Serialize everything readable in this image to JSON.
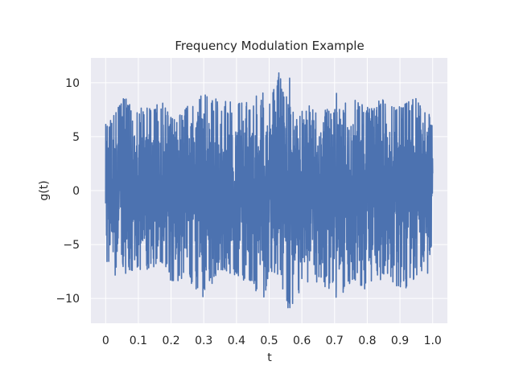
{
  "chart_data": {
    "type": "line",
    "title": "Frequency Modulation Example",
    "xlabel": "t",
    "ylabel": "g(t)",
    "xlim": [
      -0.045,
      1.045
    ],
    "ylim": [
      -12.3,
      12.3
    ],
    "xticks": [
      0,
      0.1,
      0.2,
      0.3,
      0.4,
      0.5,
      0.6,
      0.7,
      0.8,
      0.9,
      1.0
    ],
    "xtick_labels": [
      "0",
      "0.1",
      "0.2",
      "0.3",
      "0.4",
      "0.5",
      "0.6",
      "0.7",
      "0.8",
      "0.9",
      "1.0"
    ],
    "yticks": [
      -10,
      -5,
      0,
      5,
      10
    ],
    "ytick_labels": [
      "−10",
      "−5",
      "0",
      "5",
      "10"
    ],
    "grid": true,
    "background_color": "#eaeaf2",
    "grid_color": "#ffffff",
    "series": [
      {
        "color": "#4c72b0",
        "envelope": {
          "x": [
            0,
            0.02,
            0.05,
            0.1,
            0.15,
            0.18,
            0.2,
            0.25,
            0.3,
            0.35,
            0.4,
            0.45,
            0.48,
            0.5,
            0.53,
            0.56,
            0.6,
            0.65,
            0.7,
            0.75,
            0.8,
            0.85,
            0.9,
            0.95,
            1.0
          ],
          "max": [
            6.5,
            7.0,
            8.8,
            7.6,
            7.9,
            8.5,
            7.0,
            7.8,
            9.7,
            8.2,
            8.7,
            8.1,
            9.2,
            8.0,
            11.0,
            8.0,
            7.5,
            8.3,
            7.5,
            8.6,
            7.7,
            8.6,
            7.7,
            8.8,
            6.4
          ],
          "min": [
            -6.4,
            -8.1,
            -7.3,
            -7.5,
            -7.2,
            -7.0,
            -8.5,
            -8.2,
            -10.0,
            -7.4,
            -8.0,
            -8.7,
            -10.9,
            -7.5,
            -8.4,
            -11.4,
            -9.0,
            -8.5,
            -10.4,
            -8.9,
            -9.4,
            -8.2,
            -9.4,
            -8.5,
            -7.6
          ]
        }
      }
    ]
  }
}
